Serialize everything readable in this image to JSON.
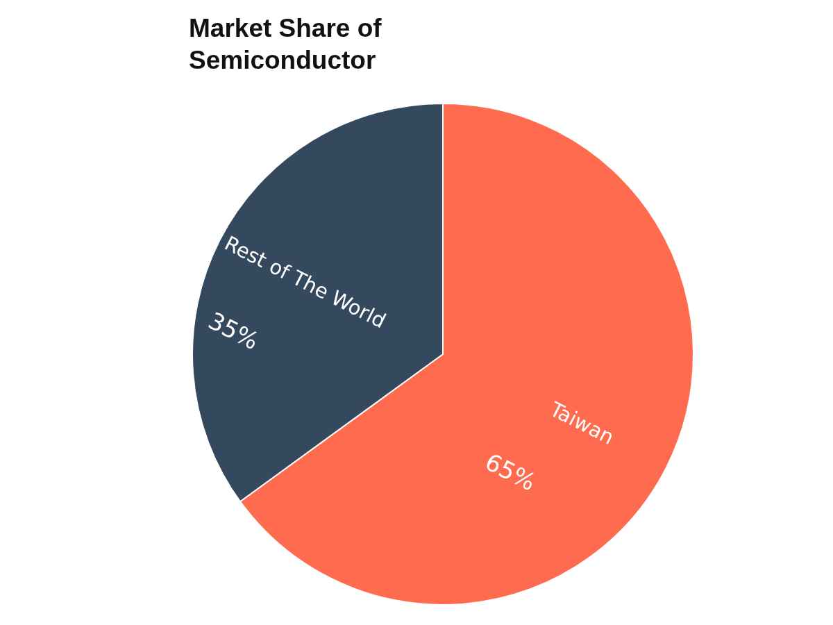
{
  "chart_data": {
    "type": "pie",
    "title": "Market Share of Semiconductor",
    "categories": [
      "Taiwan",
      "Rest of The World"
    ],
    "values": [
      65,
      35
    ],
    "colors": [
      "#fe6b4f",
      "#34495e"
    ],
    "value_labels": [
      "65%",
      "35%"
    ],
    "legend": false
  }
}
